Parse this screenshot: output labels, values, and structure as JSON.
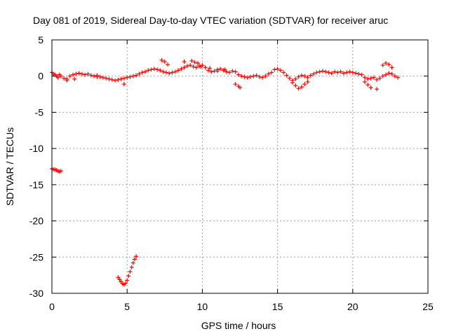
{
  "chart_data": {
    "type": "scatter",
    "title": "Day 081 of 2019, Sidereal Day-to-day VTEC variation (SDTVAR) for receiver aruc",
    "xlabel": "GPS time / hours",
    "ylabel": "SDTVAR / TECUs",
    "xlim": [
      0,
      25
    ],
    "ylim": [
      -30,
      5
    ],
    "grid": true,
    "marker": "+",
    "x_ticks": [
      {
        "value": 0,
        "label": "0"
      },
      {
        "value": 5,
        "label": "5"
      },
      {
        "value": 10,
        "label": "10"
      },
      {
        "value": 15,
        "label": "15"
      },
      {
        "value": 20,
        "label": "20"
      },
      {
        "value": 25,
        "label": "25"
      }
    ],
    "y_ticks": [
      {
        "value": 5,
        "label": "5"
      },
      {
        "value": 0,
        "label": "0"
      },
      {
        "value": -5,
        "label": "-5"
      },
      {
        "value": -10,
        "label": "-10"
      },
      {
        "value": -15,
        "label": "-15"
      },
      {
        "value": -20,
        "label": "-20"
      },
      {
        "value": -25,
        "label": "-25"
      },
      {
        "value": -30,
        "label": "-30"
      }
    ],
    "series": [
      {
        "name": "SDTVAR",
        "color": "#ff0000",
        "x": [
          0.0,
          0.1,
          0.2,
          0.3,
          0.4,
          0.5,
          0.6,
          0.8,
          1.0,
          1.2,
          1.4,
          1.6,
          1.8,
          2.0,
          2.2,
          2.4,
          2.6,
          2.8,
          3.0,
          3.2,
          3.4,
          3.6,
          3.8,
          4.0,
          4.2,
          4.4,
          4.6,
          4.8,
          5.0,
          5.2,
          5.4,
          5.6,
          5.8,
          6.0,
          6.2,
          6.4,
          6.6,
          6.8,
          7.0,
          7.2,
          7.4,
          7.6,
          7.8,
          8.0,
          8.2,
          8.4,
          8.6,
          8.8,
          9.0,
          9.2,
          9.4,
          9.6,
          9.8,
          10.0,
          10.2,
          10.4,
          10.6,
          10.8,
          11.0,
          11.2,
          11.4,
          11.6,
          11.8,
          12.0,
          12.2,
          12.4,
          12.6,
          12.8,
          13.0,
          13.2,
          13.4,
          13.6,
          13.8,
          14.0,
          14.2,
          14.4,
          14.6,
          14.8,
          15.0,
          15.2,
          15.4,
          15.6,
          15.8,
          16.0,
          16.2,
          16.4,
          16.6,
          16.8,
          17.0,
          17.2,
          17.4,
          17.6,
          17.8,
          18.0,
          18.2,
          18.4,
          18.6,
          18.8,
          19.0,
          19.2,
          19.4,
          19.6,
          19.8,
          20.0,
          20.2,
          20.4,
          20.6,
          20.8,
          21.0,
          21.2,
          21.4,
          21.6,
          21.8,
          22.0,
          22.2,
          22.4,
          22.6,
          22.8,
          23.0,
          0.0,
          0.1,
          0.2,
          0.3,
          0.4,
          0.5,
          0.6,
          4.4,
          4.5,
          4.6,
          4.7,
          4.8,
          4.9,
          5.0,
          5.1,
          5.2,
          5.3,
          5.4,
          5.5,
          5.6,
          8.8,
          16.0,
          16.2,
          16.4,
          16.6,
          16.8,
          17.0,
          7.3,
          7.5,
          7.7,
          9.3,
          9.5,
          9.7,
          9.9,
          10.5,
          11.0,
          11.5,
          12.2,
          12.4,
          12.5,
          20.8,
          21.0,
          21.2,
          21.6,
          22.0,
          22.2,
          22.4,
          22.6,
          4.8,
          1.0,
          1.5,
          3.0
        ],
        "y": [
          0.5,
          0.3,
          0.2,
          0.0,
          -0.2,
          0.2,
          0.0,
          -0.3,
          -0.4,
          0.0,
          0.2,
          0.3,
          0.4,
          0.3,
          0.2,
          0.3,
          0.1,
          0.0,
          -0.1,
          -0.1,
          -0.2,
          -0.3,
          -0.4,
          -0.5,
          -0.6,
          -0.5,
          -0.4,
          -0.3,
          -0.2,
          -0.1,
          0.0,
          0.1,
          0.3,
          0.5,
          0.6,
          0.8,
          0.9,
          1.0,
          0.9,
          0.8,
          0.6,
          0.5,
          0.4,
          0.5,
          0.6,
          0.8,
          1.0,
          1.2,
          1.4,
          1.5,
          1.3,
          1.2,
          1.4,
          1.5,
          1.2,
          0.8,
          0.6,
          0.7,
          0.9,
          1.0,
          0.8,
          0.6,
          0.5,
          0.7,
          0.6,
          0.2,
          0.0,
          -0.1,
          -0.2,
          -0.1,
          0.0,
          0.1,
          -0.1,
          -0.2,
          0.0,
          0.3,
          0.5,
          0.9,
          1.0,
          0.8,
          0.5,
          0.1,
          -0.3,
          -0.6,
          -0.4,
          -0.1,
          0.1,
          0.0,
          -0.2,
          0.1,
          0.3,
          0.5,
          0.6,
          0.7,
          0.6,
          0.5,
          0.4,
          0.6,
          0.5,
          0.6,
          0.4,
          0.5,
          0.6,
          0.5,
          0.4,
          0.3,
          0.2,
          -0.2,
          -0.4,
          -0.3,
          -0.2,
          -0.5,
          -0.3,
          0.0,
          0.2,
          0.4,
          0.3,
          0.0,
          -0.2,
          -12.8,
          -12.9,
          -12.9,
          -13.0,
          -13.1,
          -13.2,
          -13.1,
          -27.8,
          -28.1,
          -28.4,
          -28.7,
          -28.8,
          -28.6,
          -28.2,
          -27.6,
          -27.0,
          -26.4,
          -25.8,
          -25.3,
          -24.9,
          2.0,
          -0.9,
          -1.3,
          -1.7,
          -1.5,
          -1.1,
          -0.8,
          2.2,
          2.0,
          1.6,
          2.1,
          1.9,
          1.8,
          1.3,
          1.1,
          0.7,
          0.9,
          -1.1,
          -1.4,
          -1.6,
          -0.8,
          -1.2,
          -1.6,
          -1.8,
          1.5,
          1.8,
          1.6,
          1.2,
          -1.1,
          -0.6,
          -0.4,
          0.1
        ]
      }
    ]
  }
}
